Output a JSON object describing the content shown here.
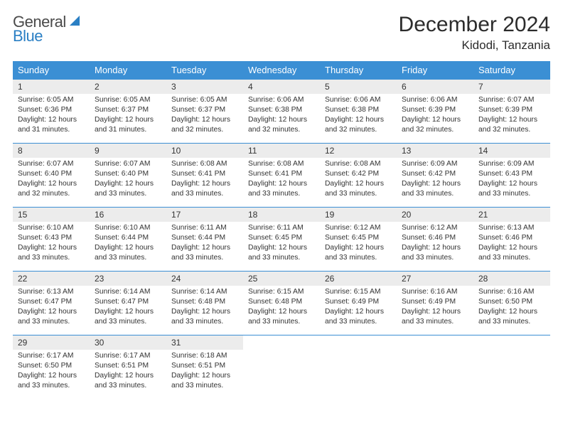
{
  "brand": {
    "line1": "General",
    "line2": "Blue"
  },
  "title": "December 2024",
  "location": "Kidodi, Tanzania",
  "colors": {
    "header_bg": "#3b8fd4",
    "header_fg": "#ffffff",
    "daynum_bg": "#ececec",
    "row_border": "#3b8fd4",
    "text": "#333333",
    "brand_blue": "#2a7fc4"
  },
  "typography": {
    "title_fontsize": 30,
    "location_fontsize": 17,
    "weekday_fontsize": 13,
    "daynum_fontsize": 12,
    "body_fontsize": 10.3
  },
  "weekdays": [
    "Sunday",
    "Monday",
    "Tuesday",
    "Wednesday",
    "Thursday",
    "Friday",
    "Saturday"
  ],
  "days": [
    {
      "n": 1,
      "sunrise": "6:05 AM",
      "sunset": "6:36 PM",
      "dlh": 12,
      "dlm": 31
    },
    {
      "n": 2,
      "sunrise": "6:05 AM",
      "sunset": "6:37 PM",
      "dlh": 12,
      "dlm": 31
    },
    {
      "n": 3,
      "sunrise": "6:05 AM",
      "sunset": "6:37 PM",
      "dlh": 12,
      "dlm": 32
    },
    {
      "n": 4,
      "sunrise": "6:06 AM",
      "sunset": "6:38 PM",
      "dlh": 12,
      "dlm": 32
    },
    {
      "n": 5,
      "sunrise": "6:06 AM",
      "sunset": "6:38 PM",
      "dlh": 12,
      "dlm": 32
    },
    {
      "n": 6,
      "sunrise": "6:06 AM",
      "sunset": "6:39 PM",
      "dlh": 12,
      "dlm": 32
    },
    {
      "n": 7,
      "sunrise": "6:07 AM",
      "sunset": "6:39 PM",
      "dlh": 12,
      "dlm": 32
    },
    {
      "n": 8,
      "sunrise": "6:07 AM",
      "sunset": "6:40 PM",
      "dlh": 12,
      "dlm": 32
    },
    {
      "n": 9,
      "sunrise": "6:07 AM",
      "sunset": "6:40 PM",
      "dlh": 12,
      "dlm": 33
    },
    {
      "n": 10,
      "sunrise": "6:08 AM",
      "sunset": "6:41 PM",
      "dlh": 12,
      "dlm": 33
    },
    {
      "n": 11,
      "sunrise": "6:08 AM",
      "sunset": "6:41 PM",
      "dlh": 12,
      "dlm": 33
    },
    {
      "n": 12,
      "sunrise": "6:08 AM",
      "sunset": "6:42 PM",
      "dlh": 12,
      "dlm": 33
    },
    {
      "n": 13,
      "sunrise": "6:09 AM",
      "sunset": "6:42 PM",
      "dlh": 12,
      "dlm": 33
    },
    {
      "n": 14,
      "sunrise": "6:09 AM",
      "sunset": "6:43 PM",
      "dlh": 12,
      "dlm": 33
    },
    {
      "n": 15,
      "sunrise": "6:10 AM",
      "sunset": "6:43 PM",
      "dlh": 12,
      "dlm": 33
    },
    {
      "n": 16,
      "sunrise": "6:10 AM",
      "sunset": "6:44 PM",
      "dlh": 12,
      "dlm": 33
    },
    {
      "n": 17,
      "sunrise": "6:11 AM",
      "sunset": "6:44 PM",
      "dlh": 12,
      "dlm": 33
    },
    {
      "n": 18,
      "sunrise": "6:11 AM",
      "sunset": "6:45 PM",
      "dlh": 12,
      "dlm": 33
    },
    {
      "n": 19,
      "sunrise": "6:12 AM",
      "sunset": "6:45 PM",
      "dlh": 12,
      "dlm": 33
    },
    {
      "n": 20,
      "sunrise": "6:12 AM",
      "sunset": "6:46 PM",
      "dlh": 12,
      "dlm": 33
    },
    {
      "n": 21,
      "sunrise": "6:13 AM",
      "sunset": "6:46 PM",
      "dlh": 12,
      "dlm": 33
    },
    {
      "n": 22,
      "sunrise": "6:13 AM",
      "sunset": "6:47 PM",
      "dlh": 12,
      "dlm": 33
    },
    {
      "n": 23,
      "sunrise": "6:14 AM",
      "sunset": "6:47 PM",
      "dlh": 12,
      "dlm": 33
    },
    {
      "n": 24,
      "sunrise": "6:14 AM",
      "sunset": "6:48 PM",
      "dlh": 12,
      "dlm": 33
    },
    {
      "n": 25,
      "sunrise": "6:15 AM",
      "sunset": "6:48 PM",
      "dlh": 12,
      "dlm": 33
    },
    {
      "n": 26,
      "sunrise": "6:15 AM",
      "sunset": "6:49 PM",
      "dlh": 12,
      "dlm": 33
    },
    {
      "n": 27,
      "sunrise": "6:16 AM",
      "sunset": "6:49 PM",
      "dlh": 12,
      "dlm": 33
    },
    {
      "n": 28,
      "sunrise": "6:16 AM",
      "sunset": "6:50 PM",
      "dlh": 12,
      "dlm": 33
    },
    {
      "n": 29,
      "sunrise": "6:17 AM",
      "sunset": "6:50 PM",
      "dlh": 12,
      "dlm": 33
    },
    {
      "n": 30,
      "sunrise": "6:17 AM",
      "sunset": "6:51 PM",
      "dlh": 12,
      "dlm": 33
    },
    {
      "n": 31,
      "sunrise": "6:18 AM",
      "sunset": "6:51 PM",
      "dlh": 12,
      "dlm": 33
    }
  ],
  "labels": {
    "sunrise_prefix": "Sunrise: ",
    "sunset_prefix": "Sunset: ",
    "daylight_prefix": "Daylight: ",
    "hours_word": " hours",
    "and_word": "and ",
    "minutes_word": " minutes."
  },
  "layout": {
    "first_weekday_index": 0,
    "trailing_empty": 4
  }
}
